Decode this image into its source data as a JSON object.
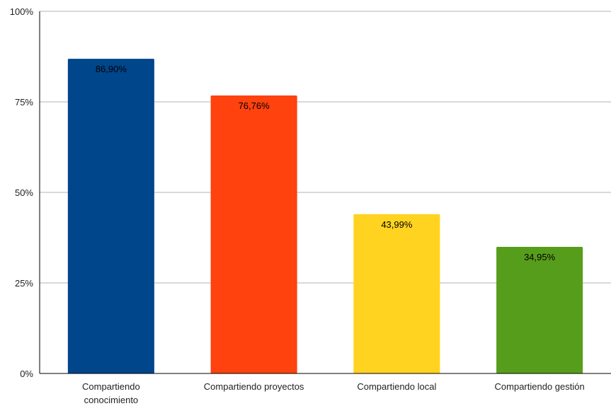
{
  "chart_data": {
    "type": "bar",
    "title": "",
    "xlabel": "",
    "ylabel": "",
    "categories": [
      [
        "Compartiendo",
        "conocimiento"
      ],
      [
        "Compartiendo proyectos"
      ],
      [
        "Compartiendo local"
      ],
      [
        "Compartiendo gestión"
      ]
    ],
    "values": [
      86.9,
      76.76,
      43.99,
      34.95
    ],
    "value_labels": [
      "86,90%",
      "76,76%",
      "43,99%",
      "34,95%"
    ],
    "colors": [
      "#00468b",
      "#ff420e",
      "#ffd320",
      "#579d1c"
    ],
    "ylim": [
      0,
      100
    ],
    "yticks": [
      0,
      25,
      50,
      75,
      100
    ],
    "ytick_labels": [
      "0%",
      "25%",
      "50%",
      "75%",
      "100%"
    ],
    "grid": true,
    "legend": "none"
  }
}
